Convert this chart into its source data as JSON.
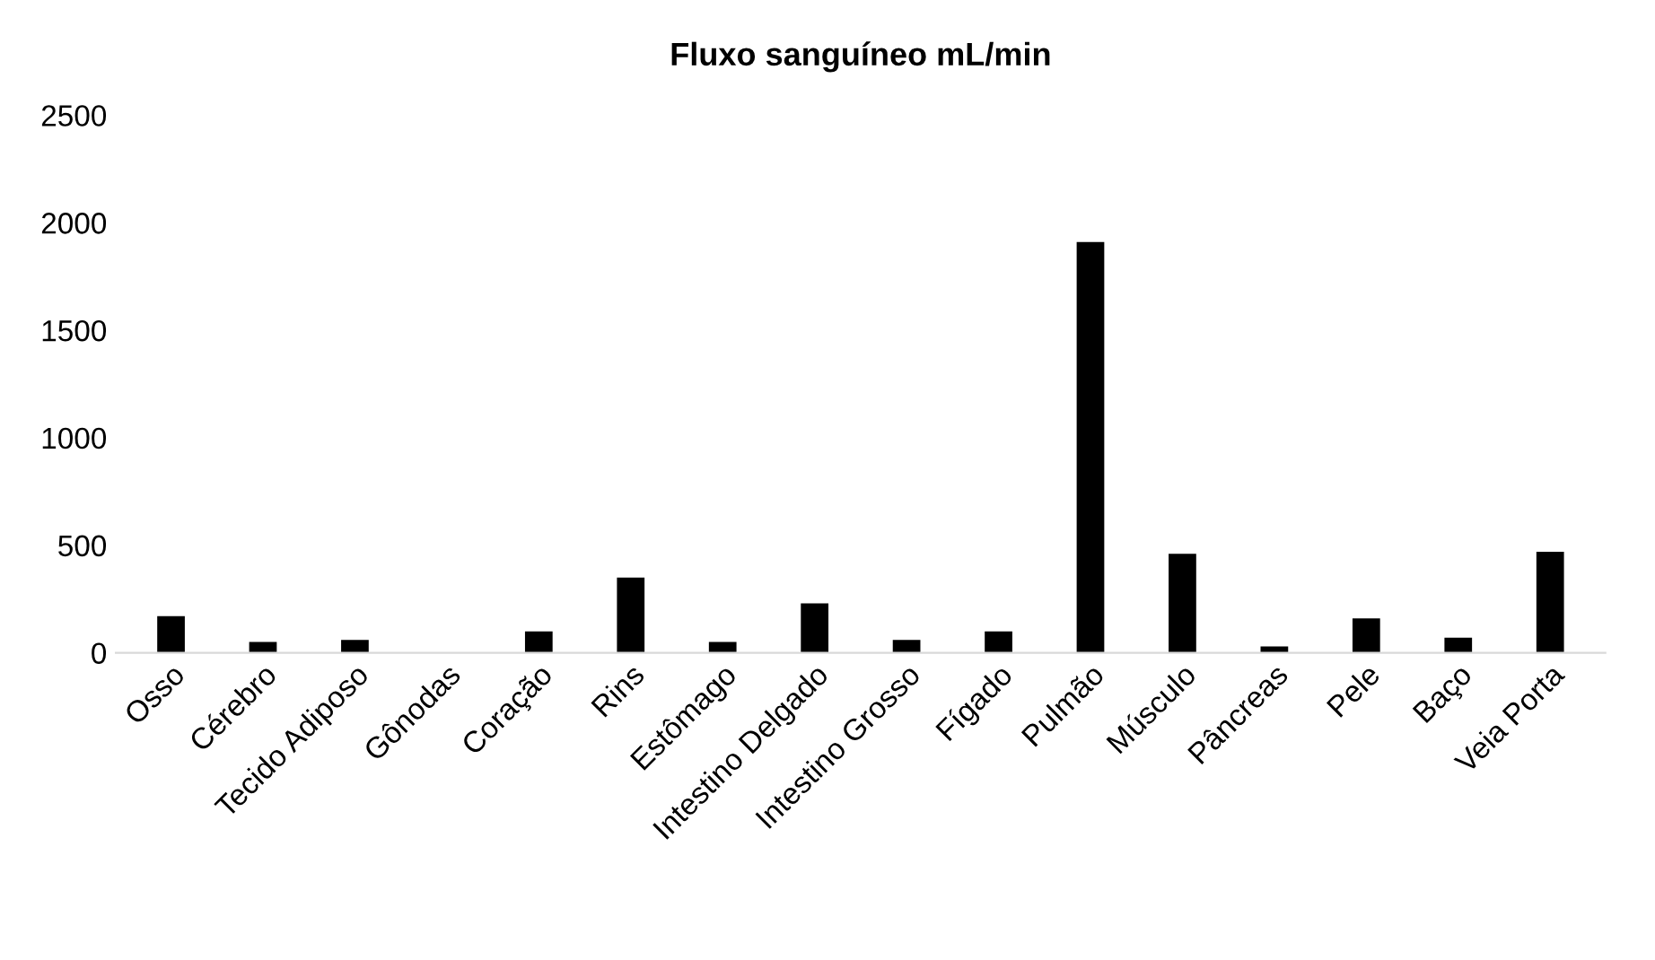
{
  "chart_data": {
    "type": "bar",
    "title": "Fluxo sanguíneo mL/min",
    "categories": [
      "Osso",
      "Cérebro",
      "Tecido Adiposo",
      "Gônodas",
      "Coração",
      "Rins",
      "Estômago",
      "Intestino Delgado",
      "Intestino Grosso",
      "Fígado",
      "Pulmão",
      "Músculo",
      "Pâncreas",
      "Pele",
      "Baço",
      "Veia Porta"
    ],
    "values": [
      170,
      50,
      60,
      0,
      100,
      350,
      50,
      230,
      60,
      100,
      1910,
      460,
      30,
      160,
      70,
      470
    ],
    "color": "#000000",
    "ylim": [
      0,
      2500
    ],
    "yticks": [
      0,
      500,
      1000,
      1500,
      2000,
      2500
    ],
    "grid": false
  }
}
